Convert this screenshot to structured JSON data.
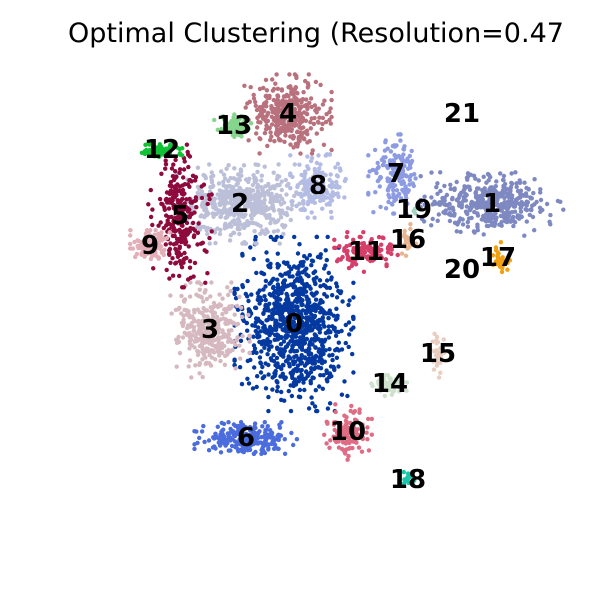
{
  "chart_data": {
    "type": "scatter",
    "title": "Optimal Clustering (Resolution=0.47",
    "xlabel": "",
    "ylabel": "",
    "grid": false,
    "axes_visible": false,
    "legend": "on data",
    "clusters": [
      {
        "label": "0",
        "color": "#0339a0",
        "center": [
          0.49,
          0.54
        ],
        "spread": [
          0.075,
          0.11
        ],
        "n": 900
      },
      {
        "label": "1",
        "color": "#7e89c2",
        "center": [
          0.82,
          0.34
        ],
        "spread": [
          0.09,
          0.04
        ],
        "n": 420
      },
      {
        "label": "2",
        "color": "#bcbfd8",
        "center": [
          0.4,
          0.34
        ],
        "spread": [
          0.08,
          0.05
        ],
        "n": 520
      },
      {
        "label": "3",
        "color": "#d6b9c0",
        "center": [
          0.35,
          0.55
        ],
        "spread": [
          0.05,
          0.06
        ],
        "n": 320
      },
      {
        "label": "4",
        "color": "#b8717d",
        "center": [
          0.48,
          0.19
        ],
        "spread": [
          0.055,
          0.05
        ],
        "n": 360
      },
      {
        "label": "5",
        "color": "#8e0a3c",
        "center": [
          0.3,
          0.36
        ],
        "spread": [
          0.04,
          0.09
        ],
        "n": 260
      },
      {
        "label": "6",
        "color": "#4b6cdc",
        "center": [
          0.41,
          0.73
        ],
        "spread": [
          0.065,
          0.02
        ],
        "n": 260
      },
      {
        "label": "7",
        "color": "#8d9be3",
        "center": [
          0.66,
          0.29
        ],
        "spread": [
          0.035,
          0.05
        ],
        "n": 160
      },
      {
        "label": "8",
        "color": "#b3bce4",
        "center": [
          0.53,
          0.31
        ],
        "spread": [
          0.035,
          0.04
        ],
        "n": 150
      },
      {
        "label": "9",
        "color": "#e3aeb8",
        "center": [
          0.25,
          0.41
        ],
        "spread": [
          0.025,
          0.02
        ],
        "n": 120
      },
      {
        "label": "10",
        "color": "#de6c85",
        "center": [
          0.58,
          0.72
        ],
        "spread": [
          0.03,
          0.035
        ],
        "n": 120
      },
      {
        "label": "11",
        "color": "#d53f69",
        "center": [
          0.61,
          0.42
        ],
        "spread": [
          0.04,
          0.025
        ],
        "n": 110
      },
      {
        "label": "12",
        "color": "#12c236",
        "center": [
          0.27,
          0.25
        ],
        "spread": [
          0.03,
          0.01
        ],
        "n": 70
      },
      {
        "label": "13",
        "color": "#86d58d",
        "center": [
          0.39,
          0.21
        ],
        "spread": [
          0.025,
          0.015
        ],
        "n": 60
      },
      {
        "label": "14",
        "color": "#cde1cc",
        "center": [
          0.65,
          0.64
        ],
        "spread": [
          0.025,
          0.015
        ],
        "n": 50
      },
      {
        "label": "15",
        "color": "#e9cdc0",
        "center": [
          0.73,
          0.59
        ],
        "spread": [
          0.01,
          0.03
        ],
        "n": 30
      },
      {
        "label": "16",
        "color": "#e7b690",
        "center": [
          0.68,
          0.4
        ],
        "spread": [
          0.01,
          0.02
        ],
        "n": 25
      },
      {
        "label": "17",
        "color": "#f0a011",
        "center": [
          0.83,
          0.43
        ],
        "spread": [
          0.015,
          0.02
        ],
        "n": 30
      },
      {
        "label": "18",
        "color": "#19c6ab",
        "center": [
          0.68,
          0.8
        ],
        "spread": [
          0.01,
          0.01
        ],
        "n": 15
      },
      {
        "label": "19",
        "color": "#a5d6c4",
        "center": [
          0.69,
          0.35
        ],
        "spread": [
          0.005,
          0.005
        ],
        "n": 4
      },
      {
        "label": "20",
        "color": "#ffffff",
        "center": [
          0.77,
          0.45
        ],
        "spread": [
          0.002,
          0.002
        ],
        "n": 0
      },
      {
        "label": "21",
        "color": "#ffffff",
        "center": [
          0.77,
          0.19
        ],
        "spread": [
          0.002,
          0.002
        ],
        "n": 0
      }
    ]
  }
}
